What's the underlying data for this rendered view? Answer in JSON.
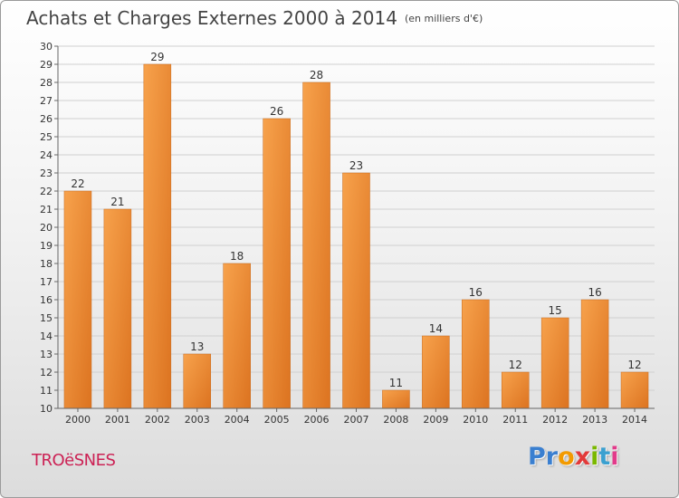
{
  "header": {
    "title": "Achats et Charges Externes 2000 à 2014",
    "unit": "(en milliers d'€)"
  },
  "footer": {
    "commune": "TROëSNES",
    "logo": {
      "letters": [
        "P",
        "r",
        "o",
        "x",
        "i",
        "t",
        "i"
      ],
      "colors": [
        "#3a7fd0",
        "#3a7fd0",
        "#f29a00",
        "#e23a3a",
        "#7ab800",
        "#3aa0d0",
        "#e23a8a"
      ]
    }
  },
  "colors": {
    "bar_light": "#f7a24c",
    "bar_dark": "#dc7320",
    "grid": "#d0d0d0"
  },
  "chart_data": {
    "type": "bar",
    "title": "Achats et Charges Externes 2000 à 2014",
    "subtitle": "(en milliers d'€)",
    "categories": [
      "2000",
      "2001",
      "2002",
      "2003",
      "2004",
      "2005",
      "2006",
      "2007",
      "2008",
      "2009",
      "2010",
      "2011",
      "2012",
      "2013",
      "2014"
    ],
    "values": [
      22,
      21,
      29,
      13,
      18,
      26,
      28,
      23,
      11,
      14,
      16,
      12,
      15,
      16,
      12
    ],
    "ylim": [
      10,
      30
    ],
    "yticks": [
      10,
      11,
      12,
      13,
      14,
      15,
      16,
      17,
      18,
      19,
      20,
      21,
      22,
      23,
      24,
      25,
      26,
      27,
      28,
      29,
      30
    ],
    "grid": true,
    "data_labels": true
  }
}
